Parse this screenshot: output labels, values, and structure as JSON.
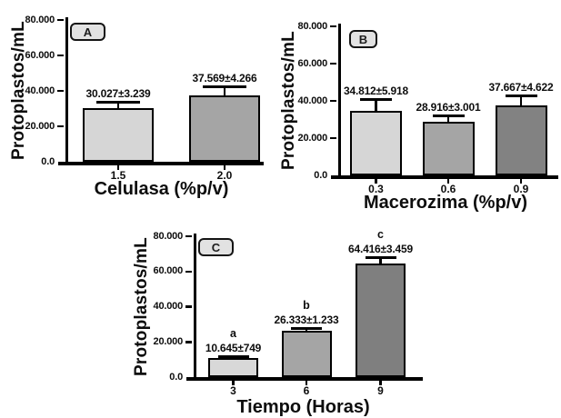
{
  "figure": {
    "background": "#ffffff",
    "text_color": "#0d0d0d",
    "axis_color": "#000000",
    "badge_fill": "#e2e2e2"
  },
  "chart_data": [
    {
      "type": "bar",
      "panel_label": "A",
      "ylabel": "Protoplastos/mL",
      "xlabel": "Celulasa (%p/v)",
      "ylim": [
        0,
        80000
      ],
      "grid": false,
      "legend": null,
      "yticks": [
        {
          "value": 0,
          "label": "0.0"
        },
        {
          "value": 20000,
          "label": "20.000"
        },
        {
          "value": 40000,
          "label": "40.000"
        },
        {
          "value": 60000,
          "label": "60.000"
        },
        {
          "value": 80000,
          "label": "80.000"
        }
      ],
      "categories": [
        "1.5",
        "2.0"
      ],
      "values": [
        30027,
        37569
      ],
      "errors": [
        3239,
        4266
      ],
      "value_labels": [
        "30.027±3.239",
        "37.569±4.266"
      ],
      "sig_letters": [
        "",
        ""
      ],
      "bar_colors": [
        "#d6d6d6",
        "#a5a5a5"
      ]
    },
    {
      "type": "bar",
      "panel_label": "B",
      "ylabel": "Protoplastos/mL",
      "xlabel": "Macerozima (%p/v)",
      "ylim": [
        0,
        80000
      ],
      "grid": false,
      "legend": null,
      "yticks": [
        {
          "value": 0,
          "label": "0.0"
        },
        {
          "value": 20000,
          "label": "20.000"
        },
        {
          "value": 40000,
          "label": "40.000"
        },
        {
          "value": 60000,
          "label": "60.000"
        },
        {
          "value": 80000,
          "label": "80.000"
        }
      ],
      "categories": [
        "0.3",
        "0.6",
        "0.9"
      ],
      "values": [
        34812,
        28916,
        37667
      ],
      "errors": [
        5918,
        3001,
        4622
      ],
      "value_labels": [
        "34.812±5.918",
        "28.916±3.001",
        "37.667±4.622"
      ],
      "sig_letters": [
        "",
        "",
        ""
      ],
      "bar_colors": [
        "#d6d6d6",
        "#a5a5a5",
        "#828282"
      ]
    },
    {
      "type": "bar",
      "panel_label": "C",
      "ylabel": "Protoplastos/mL",
      "xlabel": "Tiempo (Horas)",
      "ylim": [
        0,
        80000
      ],
      "grid": false,
      "legend": null,
      "yticks": [
        {
          "value": 0,
          "label": "0.0"
        },
        {
          "value": 20000,
          "label": "20.000"
        },
        {
          "value": 40000,
          "label": "40.000"
        },
        {
          "value": 60000,
          "label": "60.000"
        },
        {
          "value": 80000,
          "label": "80.000"
        }
      ],
      "categories": [
        "3",
        "6",
        "9"
      ],
      "values": [
        10645,
        26333,
        64416
      ],
      "errors": [
        749,
        1233,
        3459
      ],
      "value_labels": [
        "10.645±749",
        "26.333±1.233",
        "64.416±3.459"
      ],
      "sig_letters": [
        "a",
        "b",
        "c"
      ],
      "bar_colors": [
        "#d8d8d8",
        "#a5a5a5",
        "#7f7f7f"
      ]
    }
  ]
}
